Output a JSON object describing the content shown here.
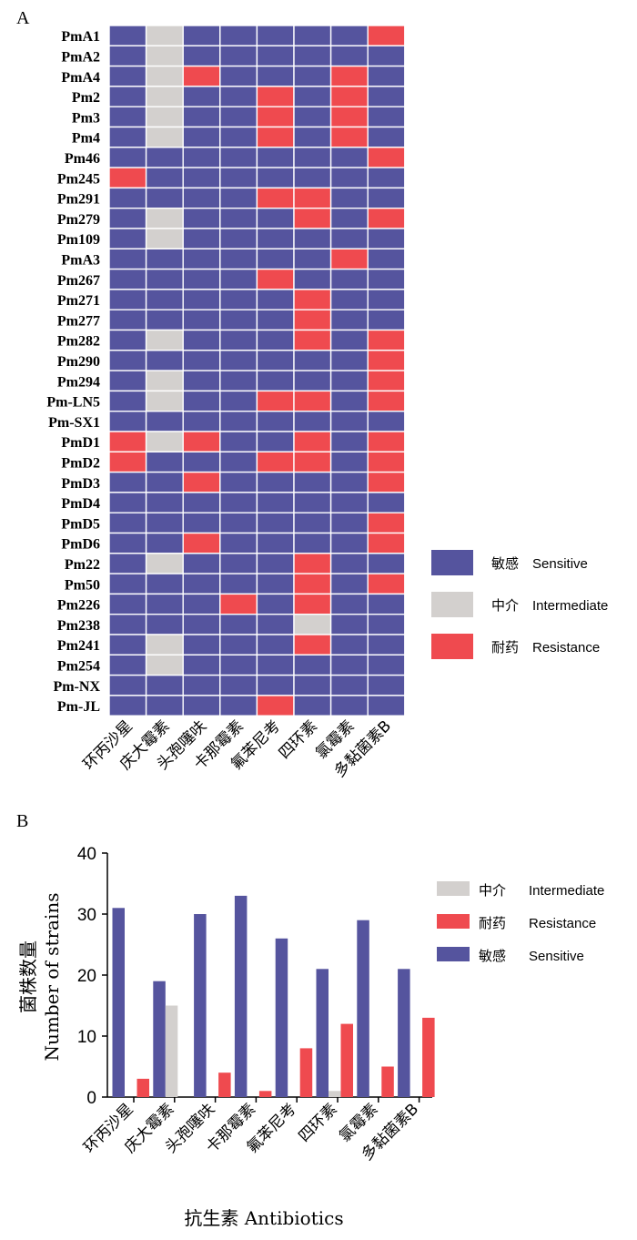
{
  "panel_a": {
    "label": "A"
  },
  "panel_b": {
    "label": "B"
  },
  "colors": {
    "sensitive": "#55549E",
    "intermediate": "#D3D0CE",
    "resistance": "#EF4A4F"
  },
  "heatmap_legend": [
    {
      "key": "S",
      "zh": "敏感",
      "en": "Sensitive"
    },
    {
      "key": "I",
      "zh": "中介",
      "en": "Intermediate"
    },
    {
      "key": "R",
      "zh": "耐药",
      "en": "Resistance"
    }
  ],
  "bar_legend": [
    {
      "key": "intermediate",
      "zh": "中介",
      "en": "Intermediate"
    },
    {
      "key": "resistance",
      "zh": "耐药",
      "en": "Resistance"
    },
    {
      "key": "sensitive",
      "zh": "敏感",
      "en": "Sensitive"
    }
  ],
  "chart_data": [
    {
      "type": "heatmap",
      "columns": [
        "环丙沙星",
        "庆大霉素",
        "头孢噻呋",
        "卡那霉素",
        "氟苯尼考",
        "四环素",
        "氯霉素",
        "多黏菌素B"
      ],
      "rows": [
        {
          "name": "PmA1",
          "values": [
            "S",
            "I",
            "S",
            "S",
            "S",
            "S",
            "S",
            "R"
          ]
        },
        {
          "name": "PmA2",
          "values": [
            "S",
            "I",
            "S",
            "S",
            "S",
            "S",
            "S",
            "S"
          ]
        },
        {
          "name": "PmA4",
          "values": [
            "S",
            "I",
            "R",
            "S",
            "S",
            "S",
            "R",
            "S"
          ]
        },
        {
          "name": "Pm2",
          "values": [
            "S",
            "I",
            "S",
            "S",
            "R",
            "S",
            "R",
            "S"
          ]
        },
        {
          "name": "Pm3",
          "values": [
            "S",
            "I",
            "S",
            "S",
            "R",
            "S",
            "R",
            "S"
          ]
        },
        {
          "name": "Pm4",
          "values": [
            "S",
            "I",
            "S",
            "S",
            "R",
            "S",
            "R",
            "S"
          ]
        },
        {
          "name": "Pm46",
          "values": [
            "S",
            "S",
            "S",
            "S",
            "S",
            "S",
            "S",
            "R"
          ]
        },
        {
          "name": "Pm245",
          "values": [
            "R",
            "S",
            "S",
            "S",
            "S",
            "S",
            "S",
            "S"
          ]
        },
        {
          "name": "Pm291",
          "values": [
            "S",
            "S",
            "S",
            "S",
            "R",
            "R",
            "S",
            "S"
          ]
        },
        {
          "name": "Pm279",
          "values": [
            "S",
            "I",
            "S",
            "S",
            "S",
            "R",
            "S",
            "R"
          ]
        },
        {
          "name": "Pm109",
          "values": [
            "S",
            "I",
            "S",
            "S",
            "S",
            "S",
            "S",
            "S"
          ]
        },
        {
          "name": "PmA3",
          "values": [
            "S",
            "S",
            "S",
            "S",
            "S",
            "S",
            "R",
            "S"
          ]
        },
        {
          "name": "Pm267",
          "values": [
            "S",
            "S",
            "S",
            "S",
            "R",
            "S",
            "S",
            "S"
          ]
        },
        {
          "name": "Pm271",
          "values": [
            "S",
            "S",
            "S",
            "S",
            "S",
            "R",
            "S",
            "S"
          ]
        },
        {
          "name": "Pm277",
          "values": [
            "S",
            "S",
            "S",
            "S",
            "S",
            "R",
            "S",
            "S"
          ]
        },
        {
          "name": "Pm282",
          "values": [
            "S",
            "I",
            "S",
            "S",
            "S",
            "R",
            "S",
            "R"
          ]
        },
        {
          "name": "Pm290",
          "values": [
            "S",
            "S",
            "S",
            "S",
            "S",
            "S",
            "S",
            "R"
          ]
        },
        {
          "name": "Pm294",
          "values": [
            "S",
            "I",
            "S",
            "S",
            "S",
            "S",
            "S",
            "R"
          ]
        },
        {
          "name": "Pm-LN5",
          "values": [
            "S",
            "I",
            "S",
            "S",
            "R",
            "R",
            "S",
            "R"
          ]
        },
        {
          "name": "Pm-SX1",
          "values": [
            "S",
            "S",
            "S",
            "S",
            "S",
            "S",
            "S",
            "S"
          ]
        },
        {
          "name": "PmD1",
          "values": [
            "R",
            "I",
            "R",
            "S",
            "S",
            "R",
            "S",
            "R"
          ]
        },
        {
          "name": "PmD2",
          "values": [
            "R",
            "S",
            "S",
            "S",
            "R",
            "R",
            "S",
            "R"
          ]
        },
        {
          "name": "PmD3",
          "values": [
            "S",
            "S",
            "R",
            "S",
            "S",
            "S",
            "S",
            "R"
          ]
        },
        {
          "name": "PmD4",
          "values": [
            "S",
            "S",
            "S",
            "S",
            "S",
            "S",
            "S",
            "S"
          ]
        },
        {
          "name": "PmD5",
          "values": [
            "S",
            "S",
            "S",
            "S",
            "S",
            "S",
            "S",
            "R"
          ]
        },
        {
          "name": "PmD6",
          "values": [
            "S",
            "S",
            "R",
            "S",
            "S",
            "S",
            "S",
            "R"
          ]
        },
        {
          "name": "Pm22",
          "values": [
            "S",
            "I",
            "S",
            "S",
            "S",
            "R",
            "S",
            "S"
          ]
        },
        {
          "name": "Pm50",
          "values": [
            "S",
            "S",
            "S",
            "S",
            "S",
            "R",
            "S",
            "R"
          ]
        },
        {
          "name": "Pm226",
          "values": [
            "S",
            "S",
            "S",
            "R",
            "S",
            "R",
            "S",
            "S"
          ]
        },
        {
          "name": "Pm238",
          "values": [
            "S",
            "S",
            "S",
            "S",
            "S",
            "I",
            "S",
            "S"
          ]
        },
        {
          "name": "Pm241",
          "values": [
            "S",
            "I",
            "S",
            "S",
            "S",
            "R",
            "S",
            "S"
          ]
        },
        {
          "name": "Pm254",
          "values": [
            "S",
            "I",
            "S",
            "S",
            "S",
            "S",
            "S",
            "S"
          ]
        },
        {
          "name": "Pm-NX",
          "values": [
            "S",
            "S",
            "S",
            "S",
            "S",
            "S",
            "S",
            "S"
          ]
        },
        {
          "name": "Pm-JL",
          "values": [
            "S",
            "S",
            "S",
            "S",
            "R",
            "S",
            "S",
            "S"
          ]
        }
      ]
    },
    {
      "type": "bar",
      "categories": [
        "环丙沙星",
        "庆大霉素",
        "头孢噻呋",
        "卡那霉素",
        "氟苯尼考",
        "四环素",
        "氯霉素",
        "多黏菌素B"
      ],
      "series": [
        {
          "name": "敏感 Sensitive",
          "key": "sensitive",
          "values": [
            31,
            19,
            30,
            33,
            26,
            21,
            29,
            21
          ]
        },
        {
          "name": "中介 Intermediate",
          "key": "intermediate",
          "values": [
            0,
            15,
            0,
            0,
            0,
            1,
            0,
            0
          ]
        },
        {
          "name": "耐药 Resistance",
          "key": "resistance",
          "values": [
            3,
            0,
            4,
            1,
            8,
            12,
            5,
            13
          ]
        }
      ],
      "ylim": [
        0,
        40
      ],
      "yticks": [
        0,
        10,
        20,
        30,
        40
      ],
      "ylabel_zh": "菌株数量",
      "ylabel_en": "Number of strains",
      "xlabel": "抗生素 Antibiotics"
    }
  ]
}
